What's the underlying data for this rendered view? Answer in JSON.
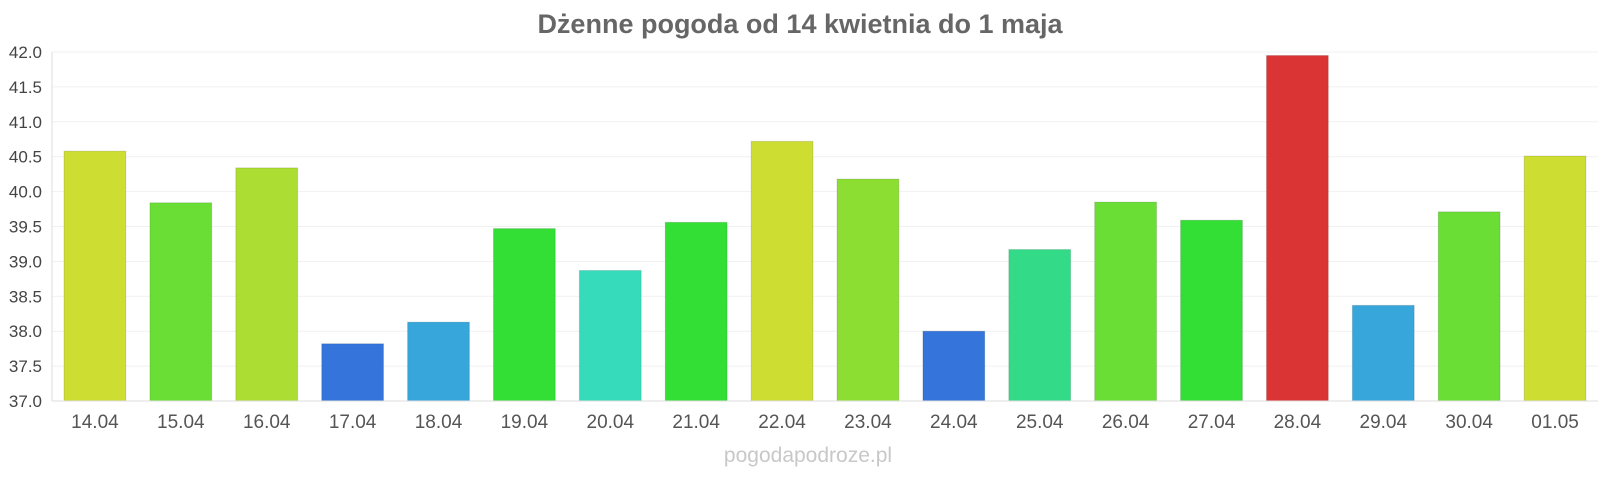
{
  "chart_data": {
    "type": "bar",
    "title": "Dżenne pogoda od 14 kwietnia do 1 maja",
    "xlabel": "",
    "ylabel": "",
    "ylim": [
      37.0,
      42.0
    ],
    "y_ticks": [
      "37.0",
      "37.5",
      "38.0",
      "38.5",
      "39.0",
      "39.5",
      "40.0",
      "40.5",
      "41.0",
      "41.5",
      "42.0"
    ],
    "grid": true,
    "categories": [
      "14.04",
      "15.04",
      "16.04",
      "17.04",
      "18.04",
      "19.04",
      "20.04",
      "21.04",
      "22.04",
      "23.04",
      "24.04",
      "25.04",
      "26.04",
      "27.04",
      "28.04",
      "29.04",
      "30.04",
      "01.05"
    ],
    "values": [
      40.58,
      39.84,
      40.34,
      37.82,
      38.13,
      39.47,
      38.87,
      39.56,
      40.72,
      40.18,
      38.0,
      39.17,
      39.85,
      39.59,
      41.95,
      38.37,
      39.71,
      40.51
    ],
    "colors": [
      "#cddd32",
      "#6ade35",
      "#acdd32",
      "#3474db",
      "#36a6db",
      "#33de35",
      "#36dbbb",
      "#33de35",
      "#cddd32",
      "#8cde33",
      "#3474db",
      "#33db89",
      "#6ade35",
      "#33de35",
      "#db3434",
      "#36a6db",
      "#6ade35",
      "#cddd32"
    ]
  },
  "watermark": "pogodapodroze.pl"
}
